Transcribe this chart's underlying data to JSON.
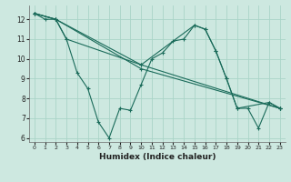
{
  "xlabel": "Humidex (Indice chaleur)",
  "bg_color": "#cde8e0",
  "line_color": "#1a6b5a",
  "grid_color": "#aad4c8",
  "xlim": [
    -0.5,
    23.5
  ],
  "ylim": [
    5.8,
    12.7
  ],
  "xticks": [
    0,
    1,
    2,
    3,
    4,
    5,
    6,
    7,
    8,
    9,
    10,
    11,
    12,
    13,
    14,
    15,
    16,
    17,
    18,
    19,
    20,
    21,
    22,
    23
  ],
  "yticks": [
    6,
    7,
    8,
    9,
    10,
    11,
    12
  ],
  "series": [
    {
      "x": [
        0,
        1,
        2,
        3,
        4,
        5,
        6,
        7,
        8,
        9,
        10,
        11,
        12,
        13,
        14,
        15,
        16,
        17,
        18,
        19,
        20,
        21,
        22,
        23
      ],
      "y": [
        12.3,
        12.0,
        12.0,
        11.0,
        9.3,
        8.5,
        6.8,
        6.0,
        7.5,
        7.4,
        8.7,
        10.0,
        10.3,
        10.9,
        11.0,
        11.7,
        11.5,
        10.4,
        9.0,
        7.5,
        7.5,
        6.5,
        7.8,
        7.5
      ]
    },
    {
      "x": [
        0,
        2,
        3,
        10,
        15,
        16,
        17,
        18,
        19,
        22,
        23
      ],
      "y": [
        12.3,
        12.0,
        11.0,
        9.7,
        11.7,
        11.5,
        10.4,
        9.0,
        7.5,
        7.8,
        7.5
      ]
    },
    {
      "x": [
        0,
        2,
        10,
        23
      ],
      "y": [
        12.3,
        12.0,
        9.7,
        7.5
      ]
    },
    {
      "x": [
        0,
        2,
        10,
        23
      ],
      "y": [
        12.3,
        12.0,
        9.5,
        7.5
      ]
    }
  ]
}
